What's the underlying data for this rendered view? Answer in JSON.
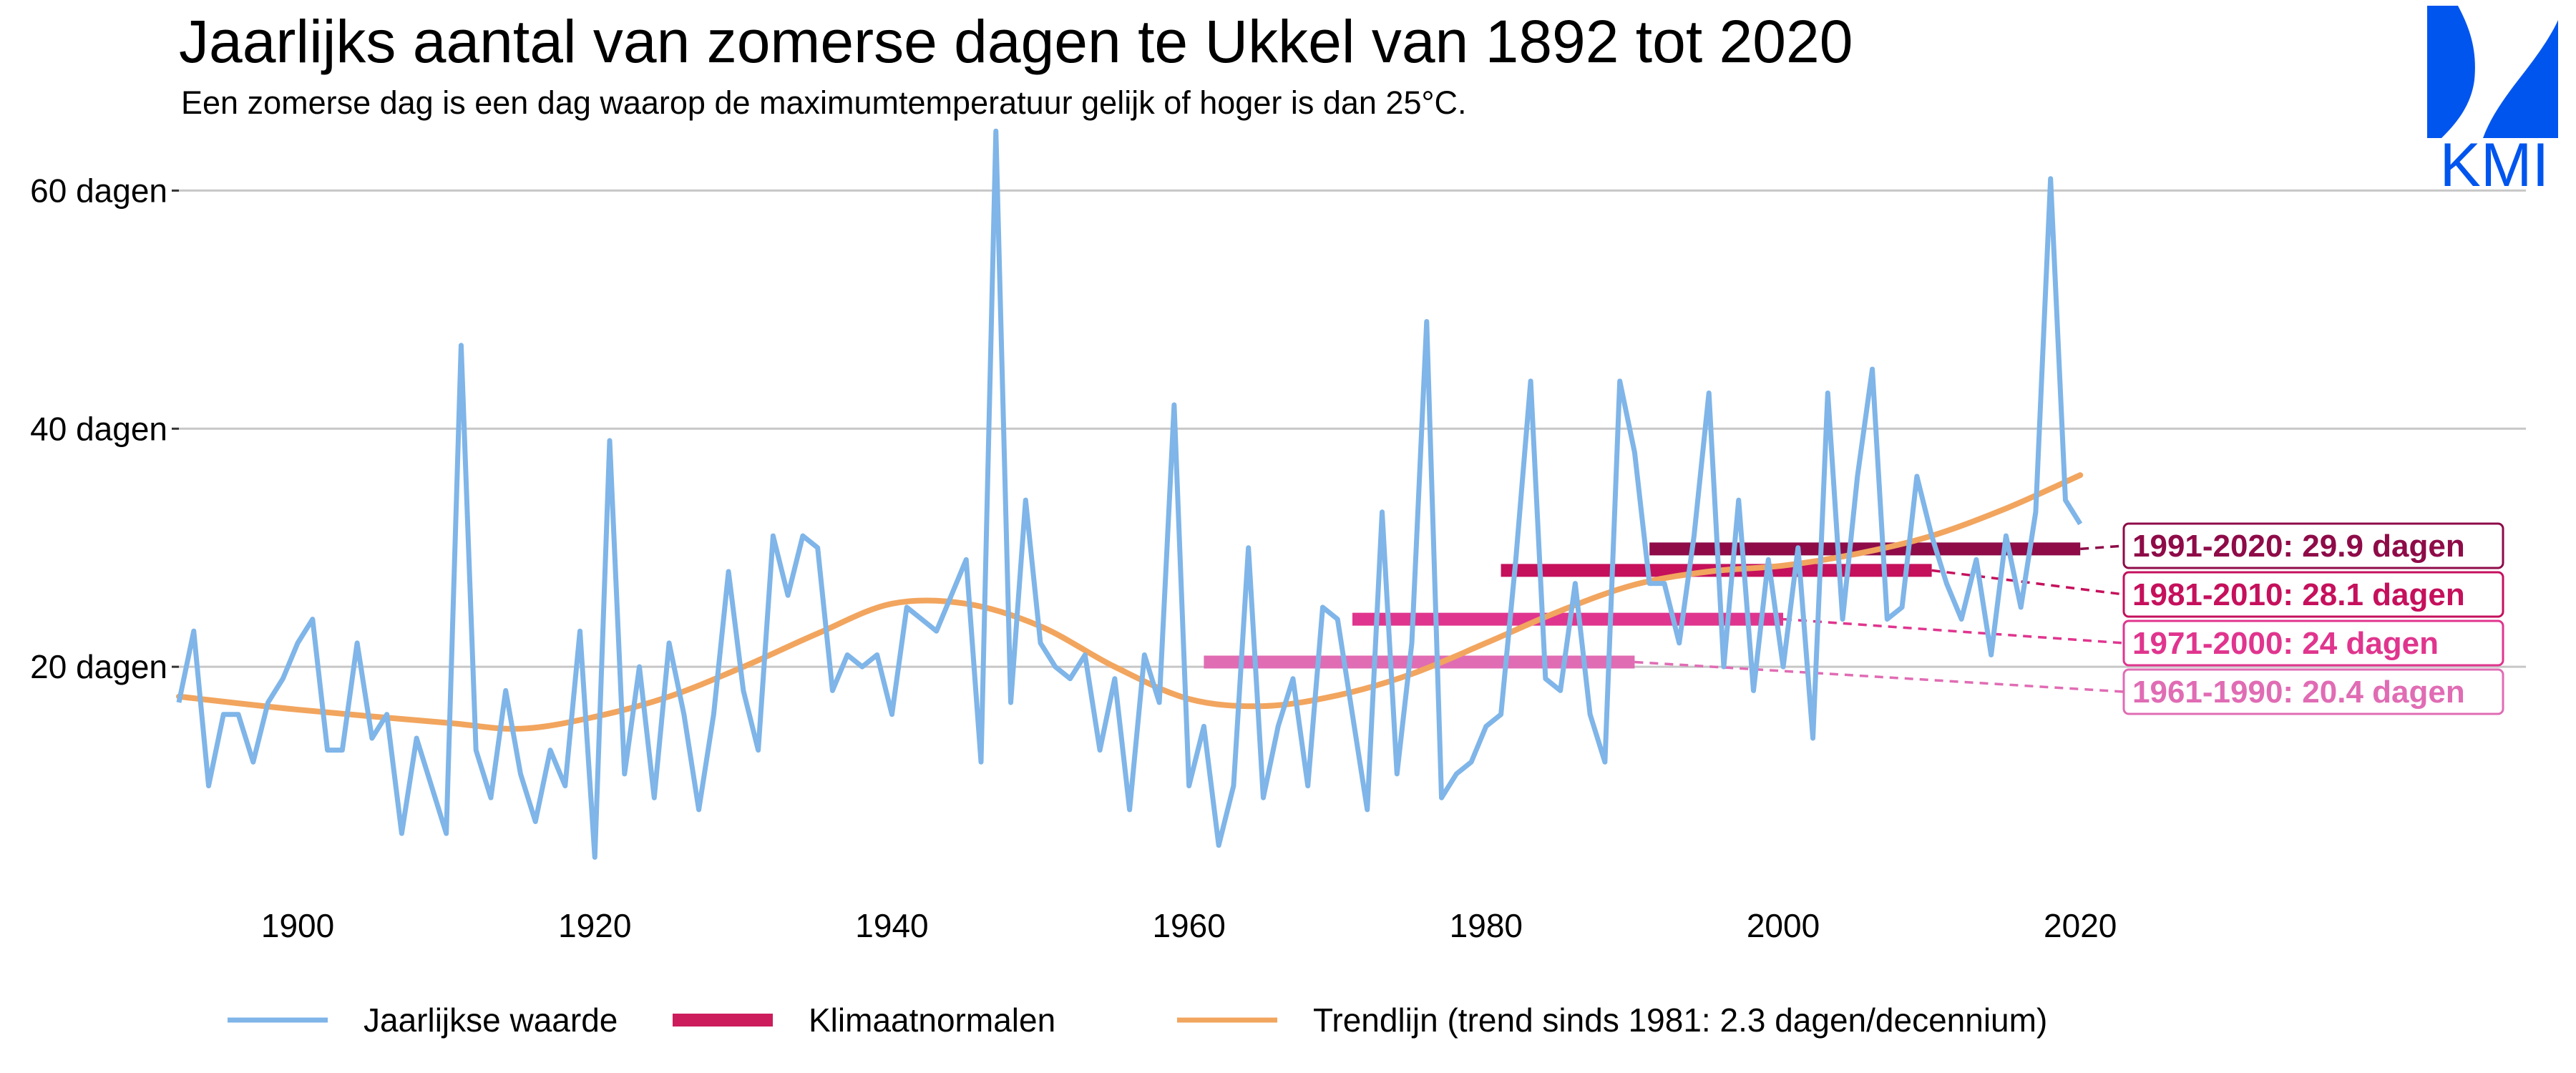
{
  "colors": {
    "yearly": "#7fb5e8",
    "trend": "#f2a55e",
    "norm_legend": "#cc1c5c",
    "kmi": "#0055ee",
    "grid": "#c7c7c7"
  },
  "logo": {
    "text": "KMI"
  },
  "legend": [
    {
      "label": "Jaarlijkse waarde",
      "color": "#7fb5e8",
      "kind": "line"
    },
    {
      "label": "Klimaatnormalen",
      "color": "#cc1c5c",
      "kind": "bar"
    },
    {
      "label": "Trendlijn (trend sinds 1981: 2.3 dagen/decennium)",
      "color": "#f2a55e",
      "kind": "line"
    }
  ],
  "chart_data": {
    "type": "line",
    "title": "Jaarlijks aantal van zomerse dagen te Ukkel van 1892 tot 2020",
    "subtitle": "Een zomerse dag is een dag waarop de maximumtemperatuur gelijk of hoger is dan 25°C.",
    "xlim": [
      1892,
      2050
    ],
    "ylim": [
      0,
      70
    ],
    "x_ticks": [
      1900,
      1920,
      1940,
      1960,
      1980,
      2000,
      2020
    ],
    "y_ticks": [
      {
        "value": 20,
        "label": "20 dagen"
      },
      {
        "value": 40,
        "label": "40 dagen"
      },
      {
        "value": 60,
        "label": "60 dagen"
      }
    ],
    "grid": "horizontal",
    "legend_position": "bottom",
    "series": [
      {
        "name": "Jaarlijkse waarde",
        "x_start": 1892,
        "values": [
          17,
          23,
          10,
          16,
          16,
          12,
          17,
          19,
          22,
          24,
          13,
          13,
          22,
          14,
          16,
          6,
          14,
          10,
          6,
          47,
          13,
          9,
          18,
          11,
          7,
          13,
          10,
          23,
          4,
          39,
          11,
          20,
          9,
          22,
          16,
          8,
          16,
          28,
          18,
          13,
          31,
          26,
          31,
          30,
          18,
          21,
          20,
          21,
          16,
          25,
          24,
          23,
          26,
          29,
          12,
          65,
          17,
          34,
          22,
          20,
          19,
          21,
          13,
          19,
          8,
          21,
          17,
          42,
          10,
          15,
          5,
          10,
          30,
          9,
          15,
          19,
          10,
          25,
          24,
          16,
          8,
          33,
          11,
          22,
          49,
          9,
          11,
          12,
          15,
          16,
          29,
          44,
          19,
          18,
          27,
          16,
          12,
          44,
          38,
          27,
          27,
          22,
          31,
          43,
          20,
          34,
          18,
          29,
          20,
          30,
          14,
          43,
          24,
          36,
          45,
          24,
          25,
          36,
          31,
          27,
          24,
          29,
          21,
          31,
          25,
          33,
          61,
          34,
          32
        ]
      },
      {
        "name": "Trendlijn (trend sinds 1981: 2.3 dagen/decennium)",
        "points": [
          [
            1892,
            17.5
          ],
          [
            1900,
            16.4
          ],
          [
            1910,
            15.3
          ],
          [
            1915,
            14.8
          ],
          [
            1920,
            15.8
          ],
          [
            1925,
            17.5
          ],
          [
            1930,
            20
          ],
          [
            1935,
            22.8
          ],
          [
            1940,
            25.3
          ],
          [
            1945,
            25.3
          ],
          [
            1950,
            23.4
          ],
          [
            1955,
            20
          ],
          [
            1960,
            17.3
          ],
          [
            1965,
            16.7
          ],
          [
            1970,
            17.6
          ],
          [
            1975,
            19.4
          ],
          [
            1980,
            22
          ],
          [
            1985,
            24.7
          ],
          [
            1990,
            26.9
          ],
          [
            1995,
            28
          ],
          [
            2000,
            28.5
          ],
          [
            2005,
            29.5
          ],
          [
            2010,
            31
          ],
          [
            2015,
            33.3
          ],
          [
            2020,
            36.1
          ]
        ]
      }
    ],
    "climate_normals": [
      {
        "period": "1961-1990",
        "label": "1961-1990: 20.4 dagen",
        "start": 1961,
        "end": 1990,
        "value": 20.4,
        "color": "#e06cb4"
      },
      {
        "period": "1971-2000",
        "label": "1971-2000: 24 dagen",
        "start": 1971,
        "end": 2000,
        "value": 24,
        "color": "#e0358e"
      },
      {
        "period": "1981-2010",
        "label": "1981-2010: 28.1 dagen",
        "start": 1981,
        "end": 2010,
        "value": 28.1,
        "color": "#c5105c"
      },
      {
        "period": "1991-2020",
        "label": "1991-2020: 29.9 dagen",
        "start": 1991,
        "end": 2020,
        "value": 29.9,
        "color": "#8e0b48"
      }
    ]
  }
}
